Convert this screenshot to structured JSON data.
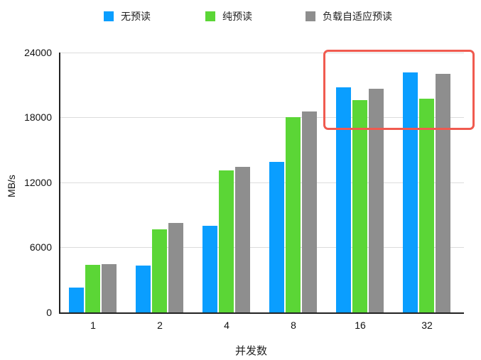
{
  "legend": {
    "items": [
      {
        "label": "无预读",
        "color": "#0a9eff"
      },
      {
        "label": "纯预读",
        "color": "#5bd636"
      },
      {
        "label": "负载自适应预读",
        "color": "#8e8e8e"
      }
    ]
  },
  "axes": {
    "ylabel": "MB/s",
    "xlabel": "并发数",
    "yticks": [
      "24000",
      "18000",
      "12000",
      "6000",
      "0"
    ],
    "xticks": [
      "1",
      "2",
      "4",
      "8",
      "16",
      "32"
    ]
  },
  "highlight": {
    "color": "#f05a4f",
    "covers_categories": [
      "16",
      "32"
    ]
  },
  "chart_data": {
    "type": "bar",
    "title": "",
    "xlabel": "并发数",
    "ylabel": "MB/s",
    "ylim": [
      0,
      24000
    ],
    "yticks": [
      0,
      6000,
      12000,
      18000,
      24000
    ],
    "grid": true,
    "legend_position": "top",
    "categories": [
      "1",
      "2",
      "4",
      "8",
      "16",
      "32"
    ],
    "series": [
      {
        "name": "无预读",
        "color": "#0a9eff",
        "values": [
          2300,
          4300,
          8000,
          13900,
          20800,
          22150
        ]
      },
      {
        "name": "纯预读",
        "color": "#5bd636",
        "values": [
          4400,
          7700,
          13100,
          18000,
          19600,
          19750
        ]
      },
      {
        "name": "负载自适应预读",
        "color": "#8e8e8e",
        "values": [
          4450,
          8250,
          13450,
          18550,
          20650,
          22050
        ]
      }
    ],
    "annotations": [
      {
        "type": "rounded-rectangle",
        "color": "#f05a4f",
        "target_categories": [
          "16",
          "32"
        ]
      }
    ]
  }
}
